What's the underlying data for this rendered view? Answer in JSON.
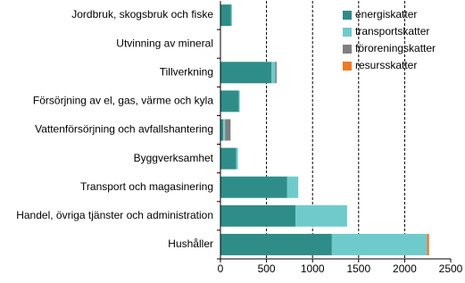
{
  "chart_data": {
    "type": "stacked-barh",
    "categories": [
      "Jordbruk, skogsbruk och fiske",
      "Utvinning av mineral",
      "Tillverkning",
      "Försörjning av el, gas, värme och kyla",
      "Vattenförsörjning och avfallshantering",
      "Byggverksamhet",
      "Transport och magasinering",
      "Handel, övriga tjänster och administration",
      "Hushåller"
    ],
    "series": [
      {
        "name": "energiskatter",
        "color": "#2e8d88",
        "values": [
          115,
          0,
          555,
          200,
          30,
          170,
          725,
          815,
          1210
        ]
      },
      {
        "name": "transportskatter",
        "color": "#6fcbcb",
        "values": [
          10,
          0,
          40,
          10,
          20,
          20,
          120,
          560,
          1030
        ]
      },
      {
        "name": "föroreningskatter",
        "color": "#7f7f7f",
        "values": [
          0,
          0,
          15,
          0,
          60,
          0,
          0,
          0,
          5
        ]
      },
      {
        "name": "resursskatter",
        "color": "#f07a22",
        "values": [
          0,
          0,
          0,
          0,
          0,
          0,
          0,
          0,
          20
        ]
      }
    ],
    "xlim": [
      0,
      2500
    ],
    "xticks": [
      0,
      500,
      1000,
      1500,
      2000,
      2500
    ],
    "grid": true,
    "legend": "top-right"
  }
}
